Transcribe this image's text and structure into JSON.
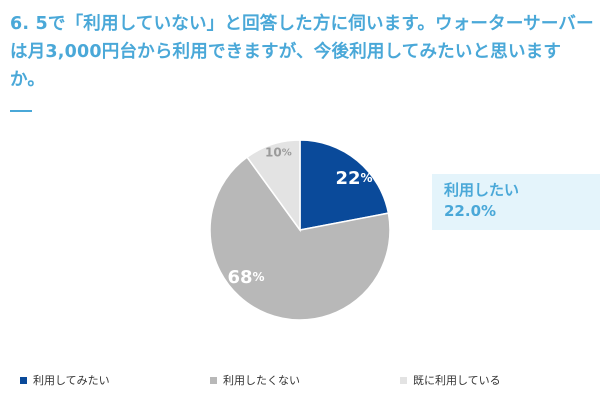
{
  "question": "6. 5で「利用していない」と回答した方に伺います。ウォーターサーバーは月3,000円台から利用できますが、今後利用してみたいと思いますか。",
  "callout": {
    "label": "利用したい",
    "value": "22.0%"
  },
  "colors": {
    "accent": "#4aa8d8",
    "callout_bg": "#e4f4fb"
  },
  "chart_data": {
    "type": "pie",
    "title": "",
    "slices": [
      {
        "name": "利用してみたい",
        "value": 22,
        "label": "22",
        "unit": "%",
        "color": "#0a4a9a",
        "label_color": "#ffffff"
      },
      {
        "name": "利用したくない",
        "value": 68,
        "label": "68",
        "unit": "%",
        "color": "#b8b8b8",
        "label_color": "#ffffff"
      },
      {
        "name": "既に利用している",
        "value": 10,
        "label": "10",
        "unit": "%",
        "color": "#e3e3e3",
        "label_color": "#9a9a9a"
      }
    ],
    "legend_position": "bottom"
  }
}
